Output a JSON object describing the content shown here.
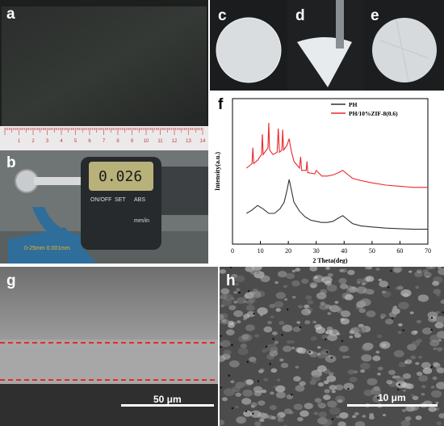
{
  "panels": {
    "a": {
      "label": "a",
      "ruler_numbers": [
        "1",
        "2",
        "3",
        "4",
        "5",
        "6",
        "7",
        "8",
        "9",
        "10",
        "11",
        "12",
        "13",
        "14"
      ]
    },
    "b": {
      "label": "b",
      "display_value": "0.026",
      "buttons": [
        "ON/OFF",
        "SET",
        "ABS",
        "mm/in"
      ],
      "brand_text": "0-25mm 0.001mm"
    },
    "c": {
      "label": "c"
    },
    "d": {
      "label": "d"
    },
    "e": {
      "label": "e"
    },
    "f": {
      "label": "f"
    },
    "g": {
      "label": "g",
      "scale_bar": "50 μm"
    },
    "h": {
      "label": "h",
      "scale_bar": "10 μm"
    }
  },
  "colors": {
    "ph": "#333333",
    "ph_zif": "#e8282b",
    "dashed_boundary": "#e8282b"
  },
  "chart_data": {
    "type": "line",
    "title": "",
    "xlabel": "2 Theta(deg)",
    "ylabel": "Intensity(a.u.)",
    "xlim": [
      0,
      70
    ],
    "xticks": [
      0,
      10,
      20,
      30,
      40,
      50,
      60,
      70
    ],
    "yticks_shown": false,
    "legend_position": "top-right",
    "series": [
      {
        "name": "PH",
        "color": "#333333",
        "x": [
          5,
          7,
          9,
          11,
          13,
          15,
          17,
          18.5,
          19.5,
          20.3,
          21,
          22,
          24,
          26,
          28,
          30,
          32,
          34,
          36,
          38,
          39.5,
          41,
          43,
          46,
          50,
          55,
          60,
          65,
          70
        ],
        "y": [
          0.2,
          0.23,
          0.27,
          0.24,
          0.2,
          0.2,
          0.24,
          0.3,
          0.4,
          0.5,
          0.42,
          0.3,
          0.22,
          0.17,
          0.14,
          0.13,
          0.12,
          0.12,
          0.13,
          0.16,
          0.18,
          0.15,
          0.11,
          0.09,
          0.08,
          0.07,
          0.065,
          0.06,
          0.06
        ]
      },
      {
        "name": "PH/10%ZIF-8(0.6)",
        "color": "#e8282b",
        "x": [
          5,
          7,
          7.3,
          7.6,
          9,
          10.4,
          10.7,
          11,
          12.7,
          13,
          13.3,
          14.5,
          16,
          16.4,
          16.8,
          17.7,
          18,
          18.3,
          19.5,
          20.3,
          21,
          22,
          24,
          24.4,
          24.8,
          26.4,
          26.7,
          27,
          29.5,
          30,
          32,
          34,
          36,
          38,
          39.5,
          41,
          43,
          46,
          50,
          55,
          60,
          65,
          70
        ],
        "y": [
          0.6,
          0.64,
          0.78,
          0.64,
          0.67,
          0.72,
          0.9,
          0.72,
          0.78,
          1.0,
          0.76,
          0.72,
          0.74,
          0.95,
          0.74,
          0.76,
          0.94,
          0.76,
          0.8,
          0.86,
          0.76,
          0.66,
          0.6,
          0.7,
          0.58,
          0.58,
          0.66,
          0.56,
          0.55,
          0.58,
          0.53,
          0.53,
          0.54,
          0.56,
          0.58,
          0.55,
          0.51,
          0.49,
          0.47,
          0.45,
          0.44,
          0.43,
          0.43
        ]
      }
    ]
  }
}
